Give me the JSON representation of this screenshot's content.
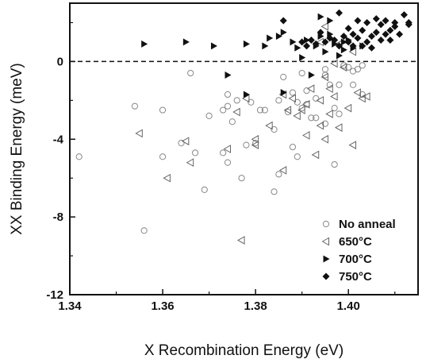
{
  "chart_data": {
    "type": "scatter",
    "xlabel": "X Recombination Energy (eV)",
    "ylabel": "XX Binding Energy (meV)",
    "xlim": [
      1.34,
      1.415
    ],
    "ylim": [
      -12,
      3
    ],
    "xticks": [
      1.34,
      1.36,
      1.38,
      1.4
    ],
    "xtick_labels": [
      "1.34",
      "1.36",
      "1.38",
      "1.40"
    ],
    "yticks": [
      -12,
      -8,
      -4,
      0
    ],
    "ytick_labels": [
      "-12",
      "-8",
      "-4",
      "0"
    ],
    "reference_line": {
      "y": 0,
      "style": "dashed"
    },
    "grid": false,
    "legend_position": "bottom-right",
    "series": [
      {
        "name": "No anneal",
        "marker": "circle-open",
        "color": "#888888",
        "points": [
          [
            1.342,
            -4.9
          ],
          [
            1.354,
            -2.3
          ],
          [
            1.356,
            -8.7
          ],
          [
            1.36,
            -2.5
          ],
          [
            1.36,
            -4.9
          ],
          [
            1.364,
            -4.2
          ],
          [
            1.366,
            -0.6
          ],
          [
            1.367,
            -4.7
          ],
          [
            1.369,
            -6.6
          ],
          [
            1.37,
            -2.8
          ],
          [
            1.373,
            -2.5
          ],
          [
            1.373,
            -4.7
          ],
          [
            1.374,
            -1.7
          ],
          [
            1.374,
            -2.3
          ],
          [
            1.374,
            -5.2
          ],
          [
            1.375,
            -3.1
          ],
          [
            1.376,
            -2.0
          ],
          [
            1.377,
            -6.0
          ],
          [
            1.378,
            -4.3
          ],
          [
            1.379,
            -2.1
          ],
          [
            1.38,
            -4.2
          ],
          [
            1.381,
            -2.5
          ],
          [
            1.382,
            -2.5
          ],
          [
            1.384,
            -6.7
          ],
          [
            1.384,
            -3.5
          ],
          [
            1.385,
            -5.8
          ],
          [
            1.386,
            -0.8
          ],
          [
            1.387,
            -2.6
          ],
          [
            1.388,
            -4.4
          ],
          [
            1.388,
            -1.6
          ],
          [
            1.389,
            -2.1
          ],
          [
            1.389,
            -4.9
          ],
          [
            1.39,
            -2.4
          ],
          [
            1.39,
            -0.6
          ],
          [
            1.391,
            -1.5
          ],
          [
            1.391,
            -2.2
          ],
          [
            1.392,
            -2.9
          ],
          [
            1.393,
            -1.9
          ],
          [
            1.393,
            -2.9
          ],
          [
            1.395,
            -0.4
          ],
          [
            1.395,
            -3.2
          ],
          [
            1.396,
            -1.2
          ],
          [
            1.397,
            -2.4
          ],
          [
            1.397,
            -5.3
          ],
          [
            1.398,
            -1.2
          ],
          [
            1.398,
            -2.7
          ],
          [
            1.399,
            -0.2
          ],
          [
            1.4,
            -0.3
          ],
          [
            1.401,
            -1.2
          ],
          [
            1.401,
            -0.5
          ],
          [
            1.402,
            -0.4
          ],
          [
            1.403,
            -0.2
          ],
          [
            1.403,
            -1.7
          ],
          [
            1.395,
            -0.7
          ],
          [
            1.385,
            -2.0
          ]
        ]
      },
      {
        "name": "650°C",
        "marker": "triangle-left-open",
        "color": "#666666",
        "points": [
          [
            1.355,
            -3.7
          ],
          [
            1.361,
            -6.0
          ],
          [
            1.365,
            -4.1
          ],
          [
            1.366,
            -5.2
          ],
          [
            1.374,
            -4.5
          ],
          [
            1.376,
            -2.6
          ],
          [
            1.377,
            -9.2
          ],
          [
            1.378,
            -1.9
          ],
          [
            1.38,
            -4.0
          ],
          [
            1.38,
            -4.3
          ],
          [
            1.383,
            -3.3
          ],
          [
            1.386,
            -1.7
          ],
          [
            1.386,
            -5.6
          ],
          [
            1.387,
            -2.5
          ],
          [
            1.388,
            -1.9
          ],
          [
            1.389,
            -2.8
          ],
          [
            1.39,
            -2.5
          ],
          [
            1.391,
            -2.2
          ],
          [
            1.391,
            -3.8
          ],
          [
            1.392,
            -1.4
          ],
          [
            1.393,
            -4.8
          ],
          [
            1.394,
            -2.0
          ],
          [
            1.394,
            -3.3
          ],
          [
            1.395,
            -0.8
          ],
          [
            1.395,
            -4.0
          ],
          [
            1.396,
            -2.7
          ],
          [
            1.396,
            -1.4
          ],
          [
            1.397,
            -0.1
          ],
          [
            1.397,
            -1.8
          ],
          [
            1.398,
            -3.4
          ],
          [
            1.399,
            -0.3
          ],
          [
            1.4,
            -2.4
          ],
          [
            1.401,
            0.5
          ],
          [
            1.402,
            -1.6
          ],
          [
            1.403,
            -1.9
          ],
          [
            1.395,
            1.8
          ],
          [
            1.394,
            1.0
          ],
          [
            1.398,
            0.9
          ],
          [
            1.401,
            -4.3
          ],
          [
            1.404,
            -1.8
          ]
        ]
      },
      {
        "name": "700°C",
        "marker": "triangle-right-filled",
        "color": "#111111",
        "points": [
          [
            1.356,
            0.9
          ],
          [
            1.365,
            1.0
          ],
          [
            1.371,
            0.8
          ],
          [
            1.374,
            -0.7
          ],
          [
            1.378,
            0.9
          ],
          [
            1.378,
            -1.7
          ],
          [
            1.382,
            0.8
          ],
          [
            1.383,
            1.2
          ],
          [
            1.385,
            1.3
          ],
          [
            1.386,
            1.5
          ],
          [
            1.388,
            1.0
          ],
          [
            1.389,
            0.7
          ],
          [
            1.39,
            0.2
          ],
          [
            1.391,
            1.1
          ],
          [
            1.392,
            -0.7
          ],
          [
            1.393,
            0.8
          ],
          [
            1.394,
            1.3
          ],
          [
            1.394,
            2.3
          ],
          [
            1.395,
            0.5
          ],
          [
            1.396,
            1.4
          ],
          [
            1.397,
            0.9
          ],
          [
            1.398,
            0.3
          ],
          [
            1.399,
            1.0
          ],
          [
            1.4,
            1.1
          ],
          [
            1.401,
            0.7
          ],
          [
            1.396,
            2.1
          ],
          [
            1.399,
            0.6
          ],
          [
            1.403,
            0.8
          ],
          [
            1.386,
            -1.6
          ]
        ]
      },
      {
        "name": "750°C",
        "marker": "diamond-filled",
        "color": "#111111",
        "points": [
          [
            1.386,
            2.1
          ],
          [
            1.39,
            1.0
          ],
          [
            1.391,
            0.8
          ],
          [
            1.392,
            1.1
          ],
          [
            1.393,
            0.9
          ],
          [
            1.394,
            1.5
          ],
          [
            1.395,
            1.0
          ],
          [
            1.396,
            1.2
          ],
          [
            1.397,
            1.1
          ],
          [
            1.398,
            2.5
          ],
          [
            1.398,
            0.8
          ],
          [
            1.399,
            1.3
          ],
          [
            1.4,
            1.7
          ],
          [
            1.4,
            1.0
          ],
          [
            1.401,
            1.4
          ],
          [
            1.401,
            0.8
          ],
          [
            1.402,
            2.1
          ],
          [
            1.402,
            1.2
          ],
          [
            1.403,
            1.6
          ],
          [
            1.403,
            0.8
          ],
          [
            1.404,
            1.0
          ],
          [
            1.404,
            2.0
          ],
          [
            1.405,
            1.3
          ],
          [
            1.405,
            0.7
          ],
          [
            1.406,
            2.2
          ],
          [
            1.406,
            1.5
          ],
          [
            1.407,
            1.1
          ],
          [
            1.407,
            1.9
          ],
          [
            1.408,
            2.1
          ],
          [
            1.408,
            1.4
          ],
          [
            1.409,
            1.6
          ],
          [
            1.409,
            1.1
          ],
          [
            1.41,
            2.0
          ],
          [
            1.41,
            1.8
          ],
          [
            1.411,
            1.4
          ],
          [
            1.412,
            2.4
          ],
          [
            1.413,
            1.9
          ],
          [
            1.413,
            2.0
          ]
        ]
      }
    ]
  }
}
